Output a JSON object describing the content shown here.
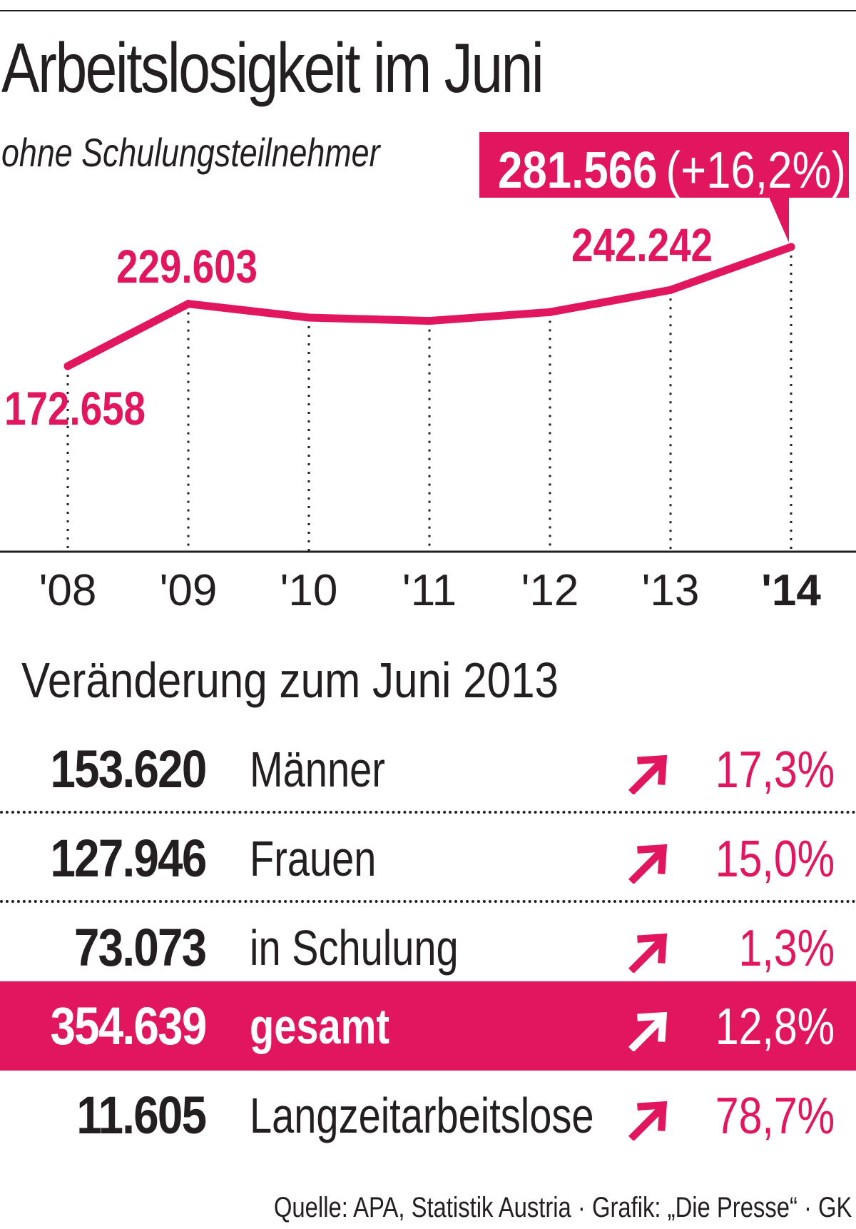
{
  "title": "Arbeitslosigkeit im Juni",
  "subtitle": "ohne Schulungsteilnehmer",
  "accent_color": "#e2165e",
  "text_color": "#231f20",
  "chart_data": {
    "type": "line",
    "x": [
      "'08",
      "'09",
      "'10",
      "'11",
      "'12",
      "'13",
      "'14"
    ],
    "series": [
      {
        "values": [
          172658,
          229603,
          217000,
          214000,
          222000,
          242242,
          281566
        ]
      }
    ],
    "data_labels": [
      {
        "index": 0,
        "text": "172.658"
      },
      {
        "index": 1,
        "text": "229.603"
      },
      {
        "index": 5,
        "text": "242.242"
      }
    ],
    "callout": {
      "index": 6,
      "value": "281.566",
      "change": "(+16,2%)"
    },
    "highlight_tick": "'14",
    "grid": "dotted vertical",
    "legend": "none"
  },
  "section_title": "Veränderung zum Juni 2013",
  "rows": [
    {
      "number": "153.620",
      "label": "Männer",
      "arrow": "up-right-arrow-icon",
      "change": "17,3%"
    },
    {
      "number": "127.946",
      "label": "Frauen",
      "arrow": "up-right-arrow-icon",
      "change": "15,0%"
    },
    {
      "number": "73.073",
      "label": "in Schulung",
      "arrow": "up-right-arrow-icon",
      "change": "1,3%"
    },
    {
      "number": "354.639",
      "label": "gesamt",
      "arrow": "up-right-arrow-icon",
      "change": "12,8%"
    },
    {
      "number": "11.605",
      "label": "Langzeitarbeitslose",
      "arrow": "up-right-arrow-icon",
      "change": "78,7%"
    }
  ],
  "source": "Quelle: APA, Statistik Austria · Grafik: „Die Presse“ · GK"
}
